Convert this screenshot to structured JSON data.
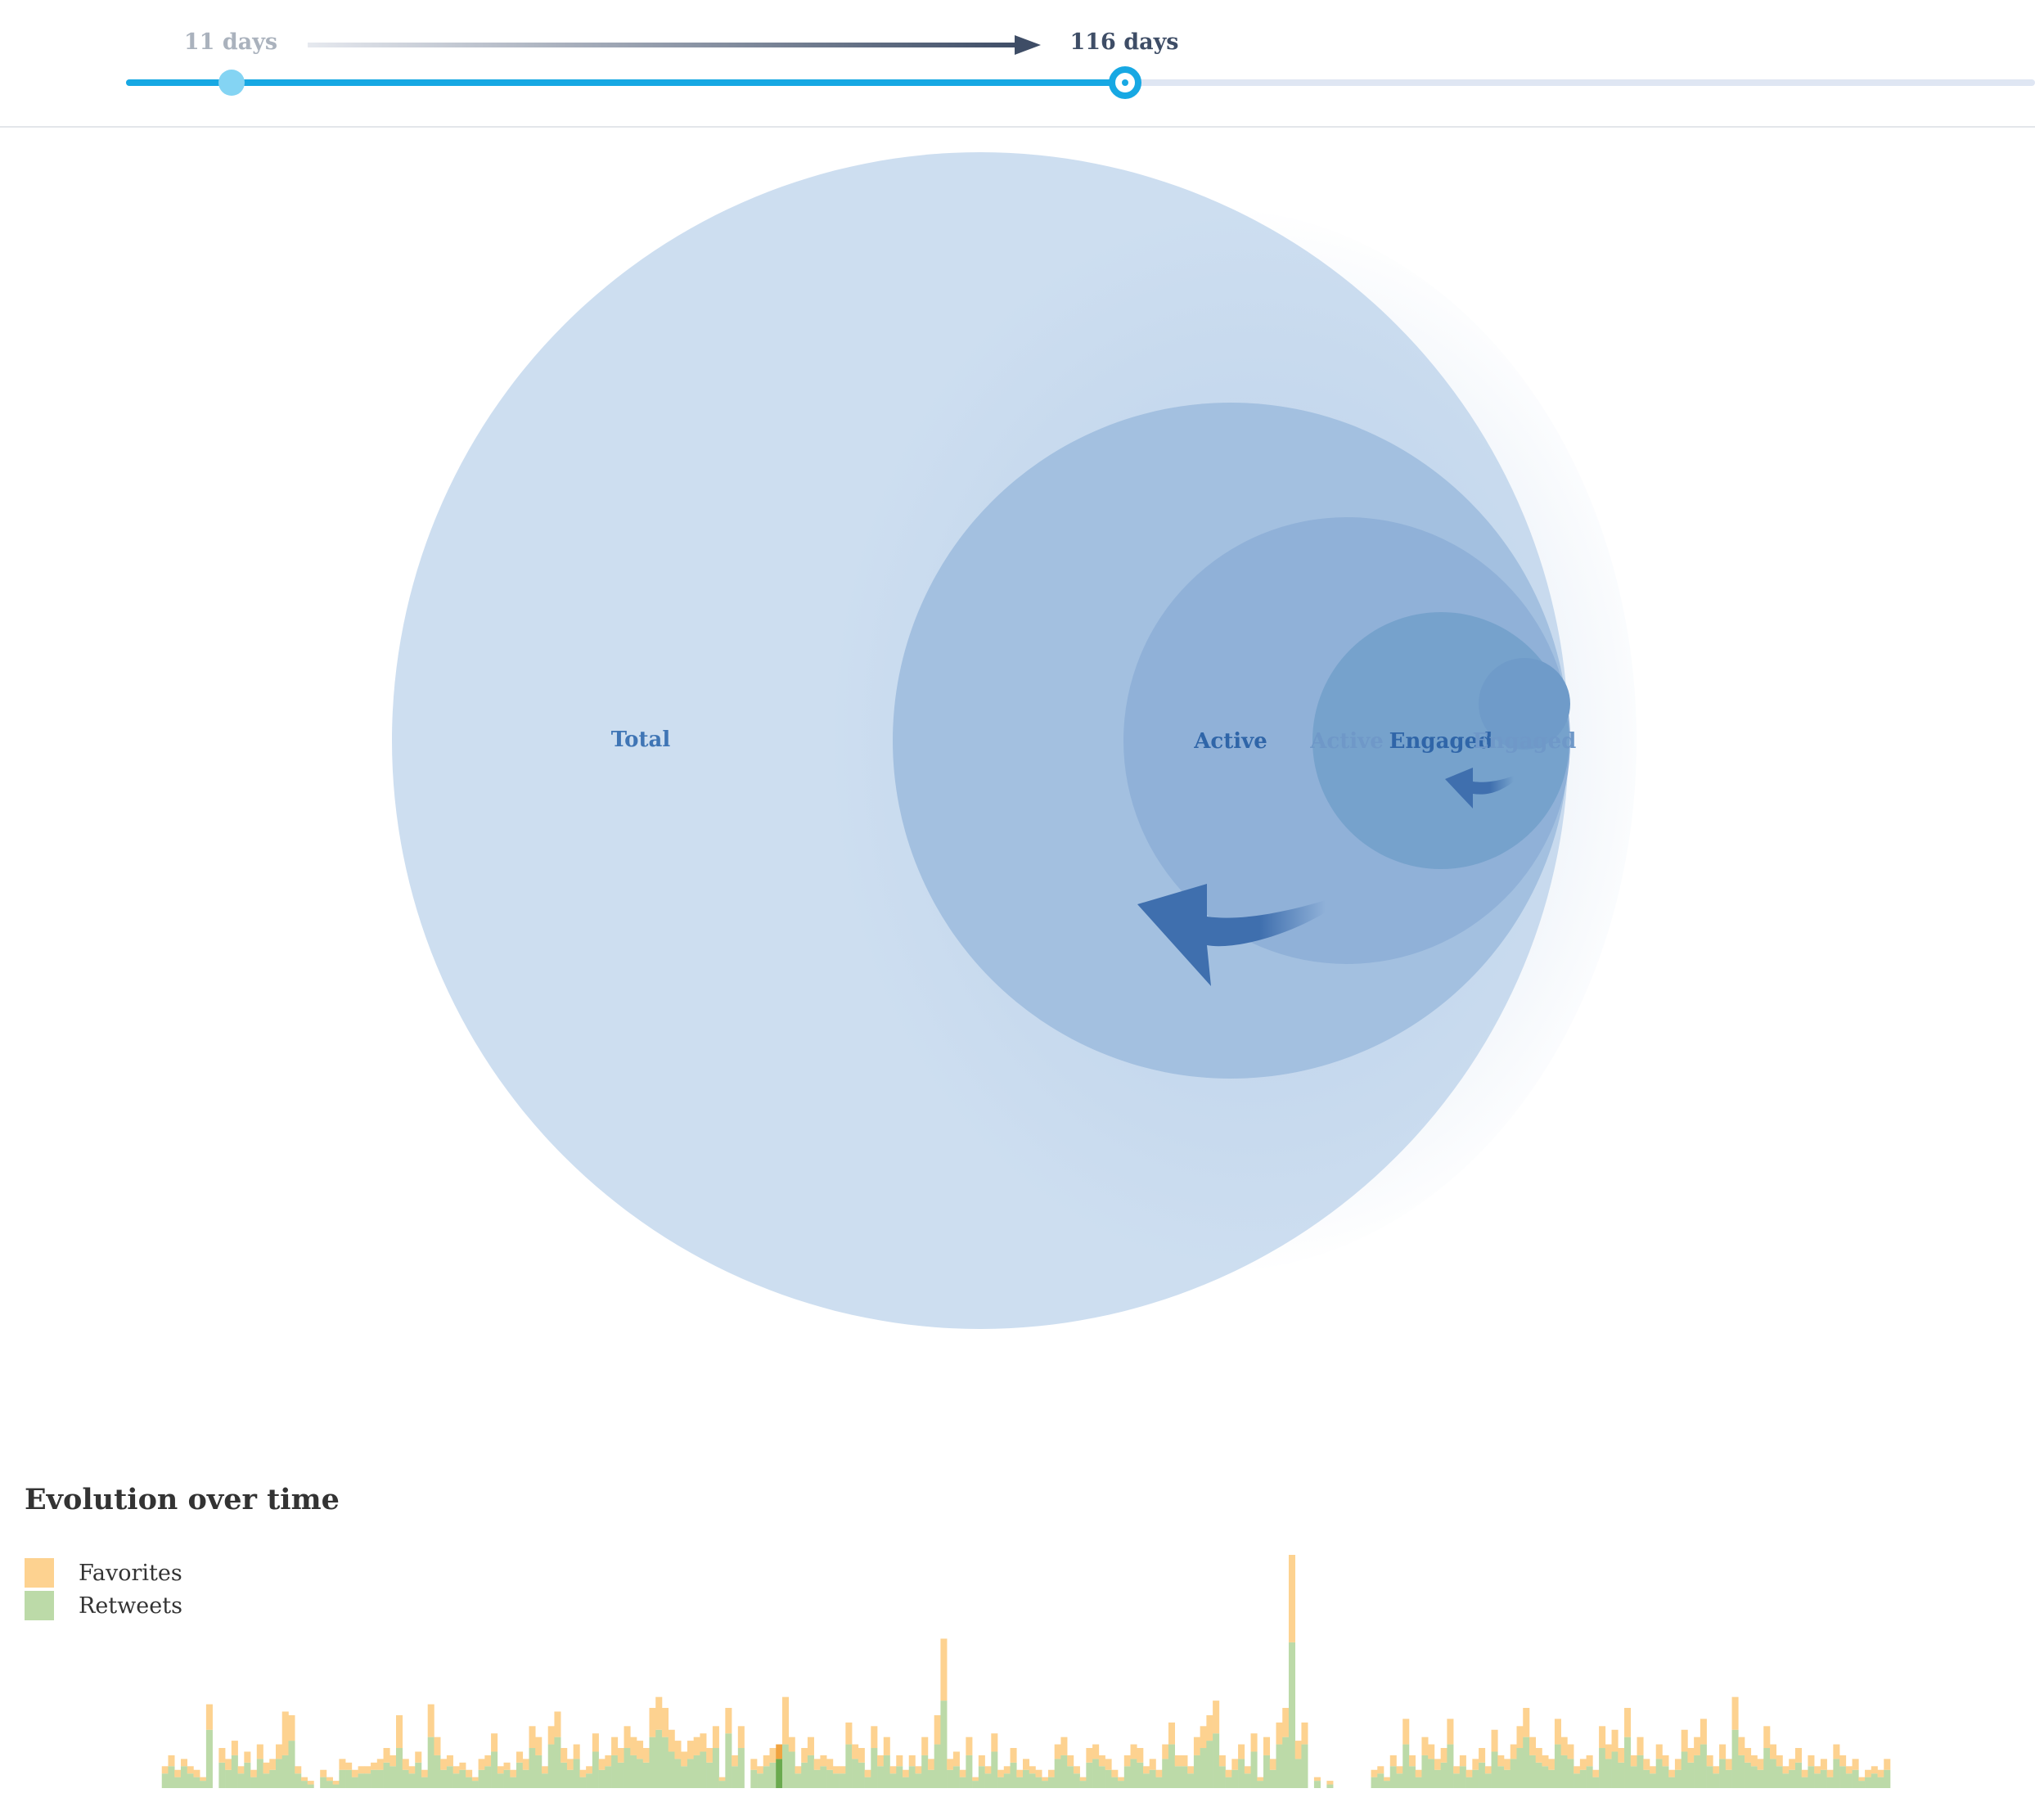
{
  "slider": {
    "start_label": "11 days",
    "end_label": "116 days",
    "start_value": 11,
    "end_value": 116,
    "active_color": "#17a8e3"
  },
  "chart_data": [
    {
      "type": "bubble-funnel",
      "circles": [
        {
          "name": "Total",
          "relative_size": 1.0,
          "color": "#cdddef"
        },
        {
          "name": "Active",
          "relative_size": 0.574,
          "color": "#a3c0e0"
        },
        {
          "name": "Active",
          "relative_size": 0.38,
          "color": "#8fb0d8",
          "faded": true
        },
        {
          "name": "Engaged",
          "relative_size": 0.218,
          "color": "#76a1cc"
        },
        {
          "name": "Engaged",
          "relative_size": 0.077,
          "color": "#6e99c8",
          "faded": true
        }
      ],
      "arrow_color": "#3f6fae"
    },
    {
      "type": "bar",
      "stacked": true,
      "title": "Evolution over time",
      "legend": [
        "Favorites",
        "Retweets"
      ],
      "series_colors": {
        "Favorites": "#fdd290",
        "Retweets": "#bcdaa8"
      },
      "highlight_colors": {
        "Favorites": "#f0a340",
        "Retweets": "#6aaa4e"
      },
      "highlight_index": 98,
      "retweets": [
        0,
        4,
        6,
        3,
        6,
        4,
        3,
        2,
        16,
        0,
        7,
        5,
        9,
        4,
        7,
        3,
        8,
        4,
        5,
        8,
        9,
        13,
        4,
        2,
        1,
        0,
        3,
        2,
        1,
        5,
        5,
        3,
        4,
        4,
        5,
        5,
        7,
        6,
        11,
        5,
        4,
        7,
        3,
        14,
        9,
        5,
        6,
        4,
        5,
        3,
        2,
        5,
        6,
        10,
        4,
        5,
        3,
        7,
        5,
        11,
        9,
        4,
        12,
        14,
        7,
        5,
        8,
        3,
        4,
        10,
        5,
        6,
        9,
        7,
        11,
        9,
        8,
        7,
        14,
        16,
        14,
        10,
        8,
        6,
        8,
        9,
        10,
        7,
        11,
        2,
        15,
        6,
        11,
        0,
        5,
        4,
        6,
        7,
        8,
        12,
        10,
        4,
        7,
        9,
        5,
        6,
        5,
        4,
        4,
        12,
        8,
        7,
        3,
        11,
        6,
        9,
        4,
        6,
        3,
        6,
        4,
        9,
        5,
        12,
        24,
        5,
        6,
        3,
        9,
        2,
        6,
        4,
        10,
        3,
        4,
        7,
        3,
        5,
        4,
        3,
        2,
        3,
        8,
        9,
        6,
        4,
        2,
        7,
        8,
        6,
        5,
        3,
        2,
        6,
        8,
        7,
        4,
        5,
        3,
        8,
        12,
        6,
        6,
        4,
        9,
        11,
        13,
        15,
        6,
        3,
        5,
        8,
        4,
        10,
        2,
        9,
        5,
        12,
        14,
        40,
        8,
        12,
        0,
        2,
        0,
        1,
        0,
        0,
        0,
        0,
        0,
        0,
        3,
        4,
        2,
        6,
        4,
        12,
        6,
        3,
        9,
        8,
        5,
        7,
        12,
        4,
        6,
        3,
        5,
        7,
        4,
        10,
        6,
        5,
        8,
        11,
        14,
        9,
        7,
        6,
        5,
        12,
        9,
        8,
        4,
        5,
        6,
        3,
        11,
        8,
        10,
        7,
        14,
        6,
        9,
        5,
        4,
        8,
        6,
        3,
        5,
        10,
        7,
        9,
        12,
        6,
        4,
        8,
        5,
        16,
        9,
        7,
        6,
        5,
        11,
        8,
        6,
        4,
        5,
        7,
        3,
        6,
        4,
        5,
        3,
        8,
        6,
        4,
        5,
        2,
        3,
        4,
        3,
        5
      ],
      "favorites": [
        0,
        2,
        3,
        2,
        2,
        2,
        2,
        1,
        7,
        0,
        4,
        3,
        4,
        2,
        3,
        2,
        4,
        3,
        3,
        4,
        12,
        7,
        2,
        1,
        1,
        0,
        2,
        1,
        1,
        3,
        2,
        2,
        2,
        2,
        2,
        3,
        4,
        3,
        9,
        3,
        2,
        3,
        2,
        9,
        5,
        3,
        3,
        2,
        2,
        2,
        1,
        3,
        3,
        5,
        2,
        2,
        2,
        3,
        3,
        6,
        5,
        2,
        5,
        7,
        4,
        3,
        4,
        2,
        2,
        5,
        3,
        3,
        5,
        4,
        6,
        5,
        5,
        4,
        8,
        9,
        8,
        6,
        5,
        4,
        5,
        5,
        5,
        4,
        6,
        1,
        7,
        3,
        6,
        0,
        3,
        2,
        3,
        4,
        4,
        13,
        4,
        2,
        4,
        5,
        3,
        3,
        3,
        2,
        2,
        6,
        4,
        4,
        2,
        6,
        3,
        5,
        2,
        3,
        2,
        3,
        2,
        5,
        3,
        8,
        17,
        3,
        4,
        2,
        5,
        1,
        3,
        2,
        5,
        2,
        2,
        4,
        2,
        3,
        2,
        2,
        1,
        2,
        4,
        5,
        3,
        2,
        1,
        4,
        4,
        3,
        3,
        2,
        1,
        3,
        4,
        4,
        2,
        3,
        2,
        4,
        6,
        3,
        3,
        2,
        5,
        6,
        7,
        9,
        3,
        2,
        3,
        4,
        2,
        5,
        1,
        5,
        3,
        6,
        8,
        24,
        5,
        6,
        0,
        1,
        0,
        1,
        0,
        0,
        0,
        0,
        0,
        0,
        2,
        2,
        1,
        3,
        2,
        7,
        3,
        2,
        5,
        4,
        3,
        4,
        7,
        2,
        3,
        2,
        3,
        4,
        2,
        6,
        3,
        3,
        4,
        6,
        8,
        5,
        4,
        3,
        3,
        7,
        5,
        4,
        2,
        3,
        3,
        2,
        6,
        4,
        6,
        4,
        8,
        3,
        5,
        3,
        2,
        4,
        3,
        2,
        3,
        6,
        4,
        5,
        7,
        3,
        2,
        4,
        3,
        9,
        5,
        4,
        3,
        3,
        6,
        4,
        3,
        2,
        3,
        4,
        2,
        3,
        2,
        3,
        2,
        4,
        3,
        2,
        3,
        1,
        2,
        2,
        2,
        3
      ]
    }
  ],
  "evolution": {
    "title": "Evolution over time",
    "legend": [
      {
        "label": "Favorites",
        "color": "#fdd290"
      },
      {
        "label": "Retweets",
        "color": "#bcdaa8"
      }
    ]
  }
}
